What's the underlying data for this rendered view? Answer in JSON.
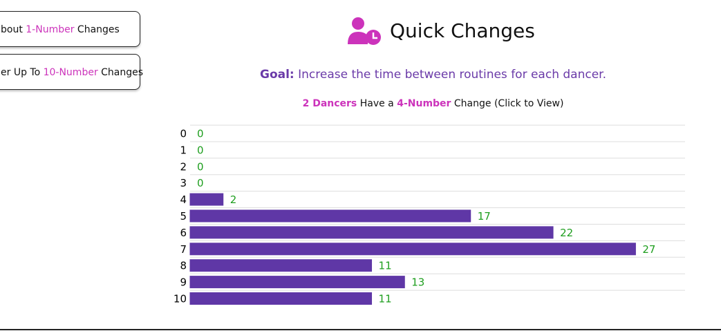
{
  "buttons": [
    {
      "prefix": "bout ",
      "highlight": "1-Number",
      "suffix": " Changes"
    },
    {
      "prefix": "er Up To ",
      "highlight": "10-Number",
      "suffix": " Changes"
    }
  ],
  "header": {
    "title": "Quick Changes"
  },
  "goal": {
    "label": "Goal:",
    "text": " Increase the time between routines for each dancer."
  },
  "summary": {
    "count": "2 Dancers",
    "middle": " Have a ",
    "change": "4-Number",
    "suffix": " Change (Click to View)"
  },
  "chart_data": {
    "type": "hbar",
    "categories": [
      "0",
      "1",
      "2",
      "3",
      "4",
      "5",
      "6",
      "7",
      "8",
      "9",
      "10"
    ],
    "values": [
      0,
      0,
      0,
      0,
      2,
      17,
      22,
      27,
      11,
      13,
      11
    ],
    "color": "#5f37a6",
    "label_color": "#1e9e1e",
    "xlim": [
      0,
      30
    ]
  }
}
